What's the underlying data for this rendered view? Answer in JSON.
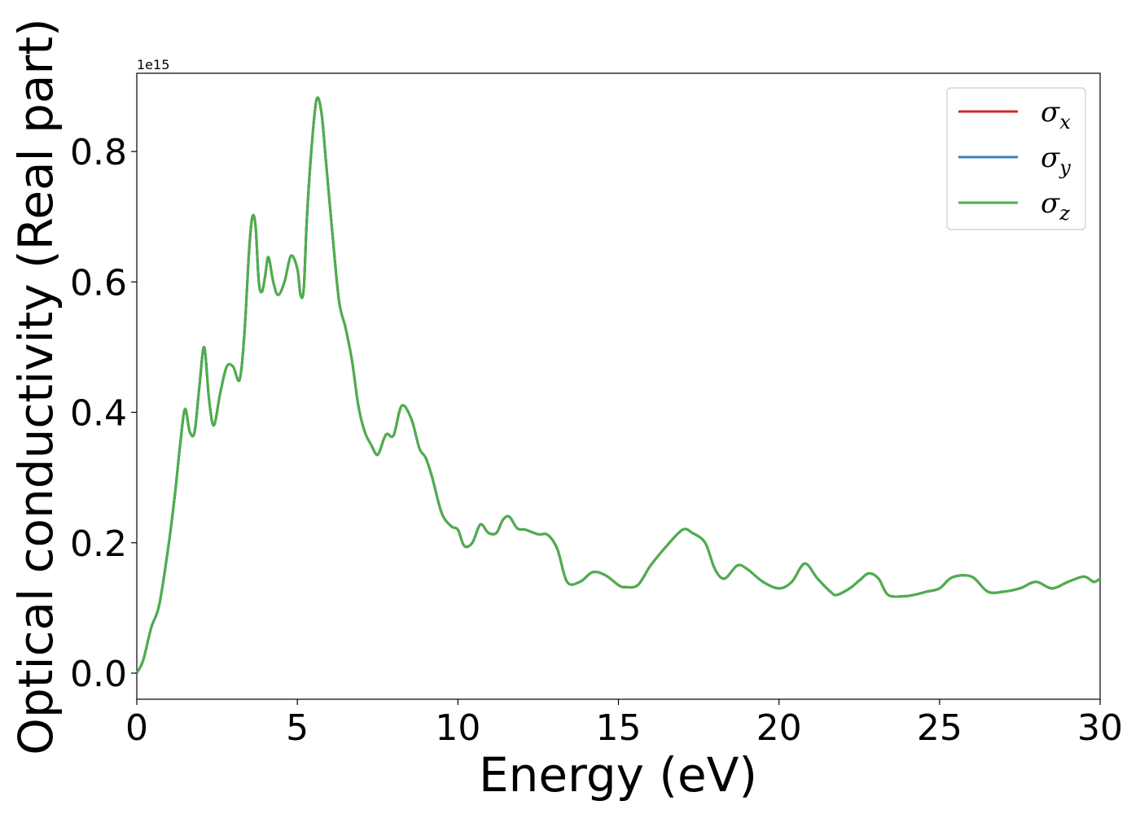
{
  "chart_data": {
    "type": "line",
    "title": "",
    "xlabel": "Energy (eV)",
    "ylabel": "Optical conductivity (Real part)",
    "y_offset_label": "1e15",
    "xlim": [
      0,
      30
    ],
    "ylim": [
      -0.04,
      0.92
    ],
    "x_ticks": [
      0,
      5,
      10,
      15,
      20,
      25,
      30
    ],
    "x_tick_labels": [
      "0",
      "5",
      "10",
      "15",
      "20",
      "25",
      "30"
    ],
    "y_ticks": [
      0.0,
      0.2,
      0.4,
      0.6,
      0.8
    ],
    "y_tick_labels": [
      "0.0",
      "0.2",
      "0.4",
      "0.6",
      "0.8"
    ],
    "grid": false,
    "legend_position": "top-right",
    "series": [
      {
        "name": "σ",
        "subscript": "x",
        "color": "#d62728"
      },
      {
        "name": "σ",
        "subscript": "y",
        "color": "#3a7fb8"
      },
      {
        "name": "σ",
        "subscript": "z",
        "color": "#4daf4a"
      }
    ],
    "x": [
      0,
      0.2,
      0.45,
      0.7,
      1.0,
      1.2,
      1.35,
      1.5,
      1.65,
      1.8,
      1.95,
      2.1,
      2.25,
      2.4,
      2.6,
      2.8,
      3.0,
      3.2,
      3.35,
      3.5,
      3.6,
      3.7,
      3.8,
      3.9,
      4.0,
      4.1,
      4.25,
      4.4,
      4.6,
      4.8,
      5.0,
      5.1,
      5.2,
      5.3,
      5.45,
      5.6,
      5.75,
      5.9,
      6.1,
      6.3,
      6.5,
      6.7,
      6.9,
      7.1,
      7.3,
      7.5,
      7.7,
      7.8,
      8.0,
      8.25,
      8.55,
      8.8,
      9.0,
      9.2,
      9.5,
      9.8,
      10.0,
      10.2,
      10.45,
      10.7,
      10.95,
      11.2,
      11.4,
      11.6,
      11.85,
      12.1,
      12.5,
      12.8,
      13.1,
      13.4,
      13.8,
      14.2,
      14.6,
      15.0,
      15.2,
      15.6,
      16.0,
      16.5,
      17.0,
      17.3,
      17.7,
      18.0,
      18.3,
      18.7,
      19.0,
      19.5,
      20.0,
      20.4,
      20.8,
      21.2,
      21.6,
      21.8,
      22.2,
      22.5,
      22.8,
      23.1,
      23.4,
      23.9,
      24.2,
      24.6,
      25.0,
      25.4,
      26.0,
      26.5,
      27.0,
      27.5,
      28.0,
      28.5,
      29.0,
      29.5,
      29.8,
      30.0
    ],
    "values": [
      0.0,
      0.02,
      0.07,
      0.105,
      0.2,
      0.28,
      0.35,
      0.405,
      0.37,
      0.37,
      0.44,
      0.5,
      0.42,
      0.38,
      0.43,
      0.47,
      0.47,
      0.45,
      0.52,
      0.65,
      0.7,
      0.685,
      0.6,
      0.585,
      0.61,
      0.638,
      0.6,
      0.58,
      0.6,
      0.64,
      0.62,
      0.58,
      0.59,
      0.7,
      0.81,
      0.88,
      0.86,
      0.78,
      0.67,
      0.57,
      0.53,
      0.48,
      0.41,
      0.37,
      0.35,
      0.335,
      0.36,
      0.367,
      0.365,
      0.41,
      0.39,
      0.345,
      0.33,
      0.3,
      0.245,
      0.225,
      0.22,
      0.195,
      0.2,
      0.228,
      0.215,
      0.215,
      0.235,
      0.24,
      0.222,
      0.22,
      0.213,
      0.212,
      0.19,
      0.14,
      0.14,
      0.155,
      0.15,
      0.135,
      0.132,
      0.135,
      0.165,
      0.195,
      0.22,
      0.215,
      0.2,
      0.16,
      0.145,
      0.165,
      0.16,
      0.14,
      0.13,
      0.14,
      0.168,
      0.145,
      0.125,
      0.12,
      0.13,
      0.142,
      0.153,
      0.145,
      0.12,
      0.118,
      0.12,
      0.125,
      0.13,
      0.147,
      0.148,
      0.125,
      0.125,
      0.13,
      0.14,
      0.13,
      0.14,
      0.148,
      0.14,
      0.145
    ]
  }
}
